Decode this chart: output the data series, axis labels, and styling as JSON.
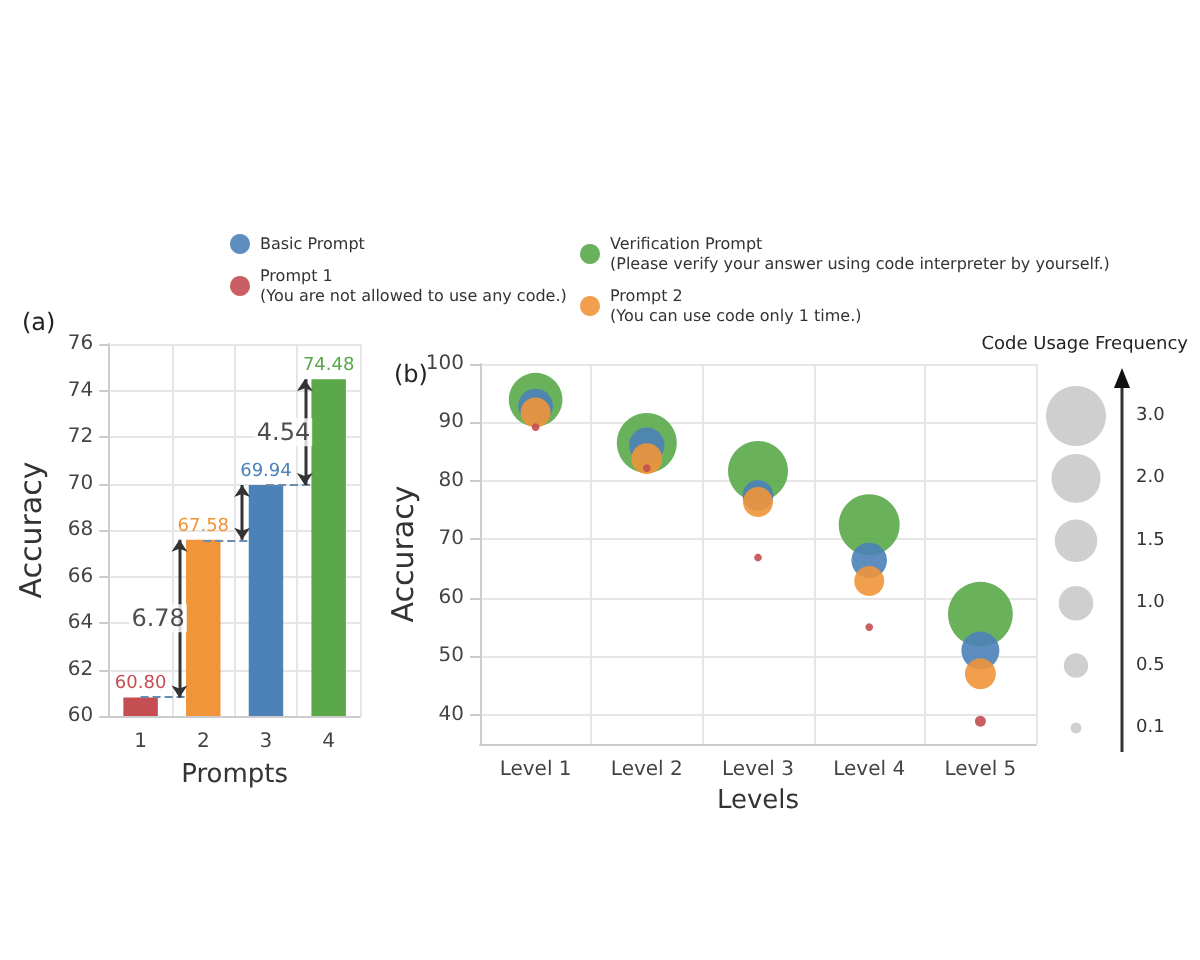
{
  "chart_data": [
    {
      "type": "bar",
      "title": "(a)",
      "xlabel": "Prompts",
      "ylabel": "Accuracy",
      "categories": [
        "1",
        "2",
        "3",
        "4"
      ],
      "values": [
        60.8,
        67.58,
        69.94,
        74.48
      ],
      "colors": [
        "#c44e52",
        "#f0953a",
        "#4c82b8",
        "#5aa84a"
      ],
      "value_labels": [
        "60.80",
        "67.58",
        "69.94",
        "74.48"
      ],
      "annotations": [
        "6.78",
        "4.54"
      ],
      "ylim": [
        60,
        76
      ],
      "yticks": [
        60,
        62,
        64,
        66,
        68,
        70,
        72,
        74,
        76
      ],
      "grid": true,
      "legend": false
    },
    {
      "type": "bubble",
      "title": "(b)",
      "xlabel": "Levels",
      "ylabel": "Accuracy",
      "legend_title": "Code Usage Frequency",
      "categories": [
        "Level 1",
        "Level 2",
        "Level 3",
        "Level 4",
        "Level 5"
      ],
      "series": [
        {
          "name": "Basic Prompt",
          "color": "#4c82b8",
          "values": [
            92.8,
            86.1,
            77.5,
            66.4,
            51.0
          ],
          "sizes": [
            1.0,
            1.05,
            0.8,
            1.05,
            1.2
          ]
        },
        {
          "name": "Prompt 1\n(You are not allowed to use any code.)",
          "color": "#c44e52",
          "values": [
            89.2,
            82.2,
            66.9,
            55.0,
            38.9
          ],
          "sizes": [
            0.05,
            0.05,
            0.05,
            0.05,
            0.1
          ]
        },
        {
          "name": "Verification Prompt\n(Please verify your answer using code interpreter by yourself.)",
          "color": "#5aa84a",
          "values": [
            93.9,
            86.5,
            81.7,
            72.5,
            57.2
          ],
          "sizes": [
            2.4,
            3.0,
            3.0,
            3.1,
            3.5
          ]
        },
        {
          "name": "Prompt 2\n(You can use code only 1 time.)",
          "color": "#f0953a",
          "values": [
            91.7,
            83.8,
            76.4,
            62.9,
            47.0
          ],
          "sizes": [
            0.75,
            0.8,
            0.75,
            0.75,
            0.8
          ]
        }
      ],
      "size_legend": [
        {
          "value": 3,
          "label": "3.0"
        },
        {
          "value": 2,
          "label": "2.0"
        },
        {
          "value": 1.5,
          "label": "1.5"
        },
        {
          "value": 1,
          "label": "1.0"
        },
        {
          "value": 0.5,
          "label": "0.5"
        },
        {
          "value": 0.1,
          "label": "0.1"
        }
      ],
      "ylim": [
        35,
        100
      ],
      "yticks": [
        40,
        50,
        60,
        70,
        80,
        90,
        100
      ],
      "grid": true,
      "legend": "top"
    }
  ]
}
